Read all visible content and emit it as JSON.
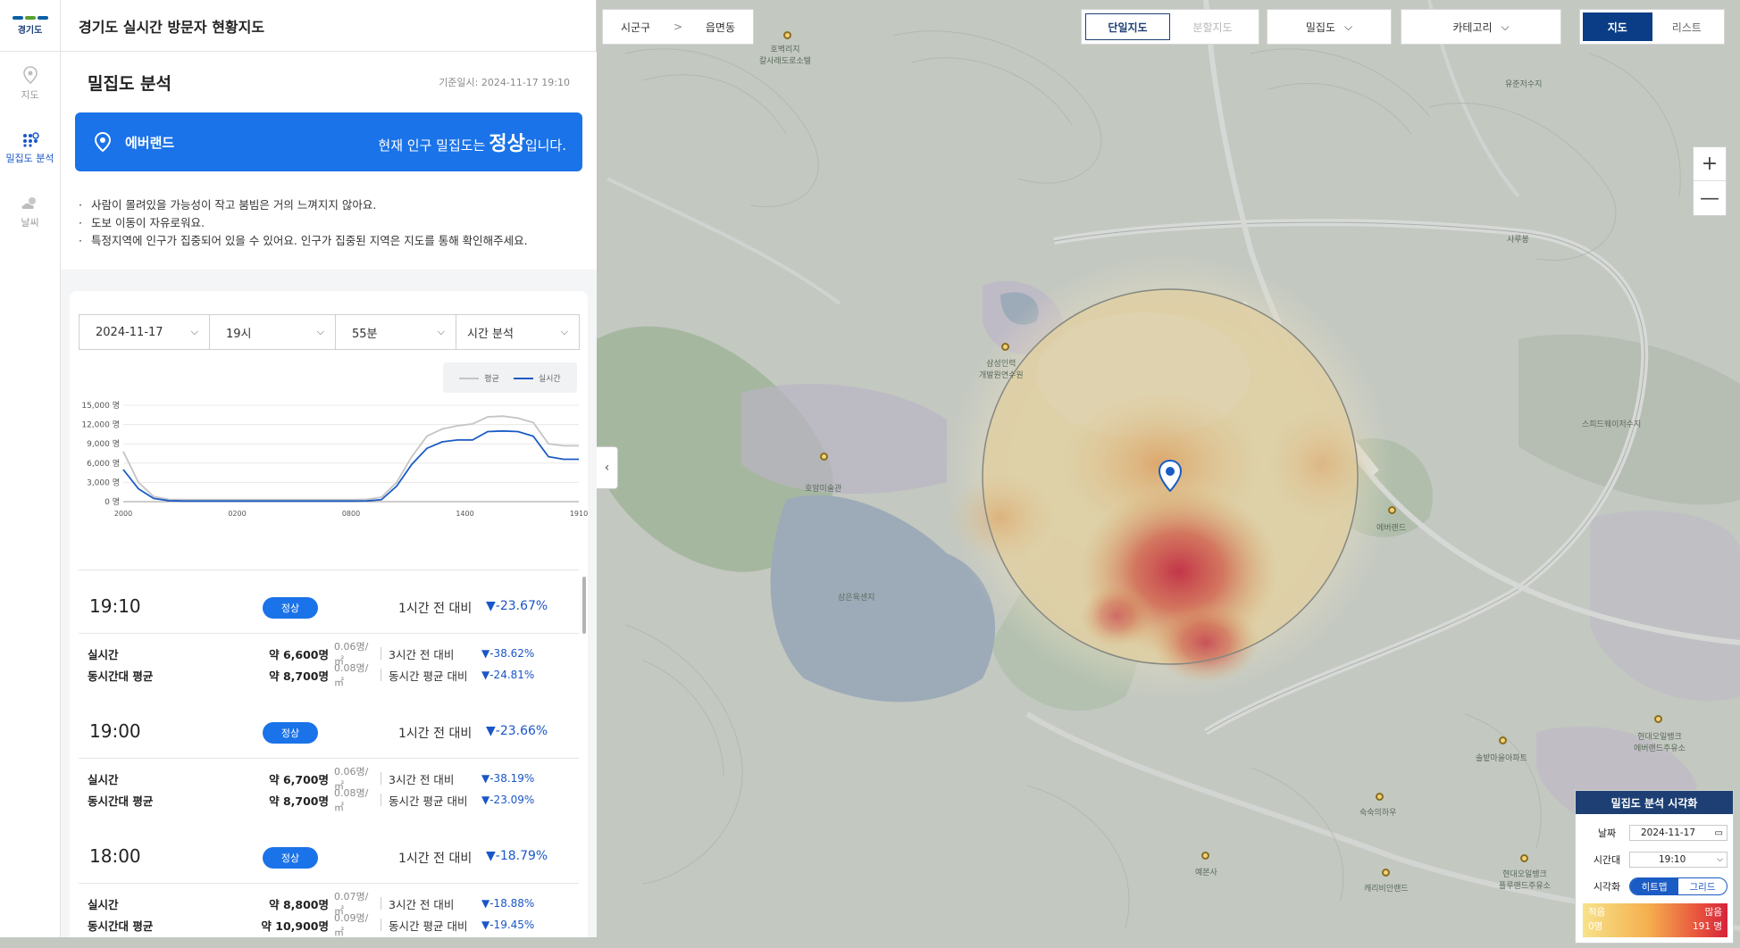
{
  "app": {
    "logo_text": "경기도",
    "title": "경기도 실시간 방문자 현황지도"
  },
  "side_nav": [
    {
      "label": "지도"
    },
    {
      "label": "밀집도 분석"
    },
    {
      "label": "날씨"
    }
  ],
  "summary": {
    "heading": "밀집도 분석",
    "timestamp": "기준일시: 2024-11-17 19:10",
    "place": "에버랜드",
    "status_prefix": "현재 인구 밀집도는",
    "status_value": "정상",
    "status_suffix": "입니다.",
    "bullets": [
      "사람이 몰려있을 가능성이 작고 붐빔은 거의 느껴지지 않아요.",
      "도보 이동이 자유로워요.",
      "특정지역에 인구가 집중되어 있을 수 있어요. 인구가 집중된 지역은 지도를 통해 확인해주세요."
    ]
  },
  "filters": {
    "date": "2024-11-17",
    "hour": "19시",
    "minute": "55분",
    "mode": "시간 분석"
  },
  "legend": {
    "avg": "평균",
    "realtime": "실시간"
  },
  "chart_data": {
    "type": "line",
    "x_ticks": [
      "2000",
      "0200",
      "0800",
      "1400",
      "1910"
    ],
    "y_ticks": [
      "15,000 명",
      "12,000 명",
      "9,000 명",
      "6,000 명",
      "3,000 명",
      "0 명"
    ],
    "ylim": [
      0,
      15000
    ],
    "colors": {
      "avg": "#c4c4c4",
      "realtime": "#1a5bc4"
    },
    "series": [
      {
        "name": "평균",
        "values": [
          7800,
          3000,
          800,
          350,
          300,
          300,
          300,
          300,
          300,
          300,
          300,
          300,
          300,
          300,
          300,
          300,
          350,
          700,
          3000,
          7000,
          10200,
          11300,
          11800,
          12100,
          13200,
          13300,
          13000,
          12300,
          9000,
          8700,
          8700
        ]
      },
      {
        "name": "실시간",
        "values": [
          5000,
          2000,
          500,
          150,
          100,
          100,
          100,
          100,
          100,
          100,
          100,
          100,
          100,
          100,
          100,
          100,
          120,
          300,
          2400,
          5800,
          8300,
          9300,
          9600,
          9600,
          10900,
          11000,
          10900,
          10200,
          7000,
          6600,
          6600
        ]
      }
    ]
  },
  "entries": [
    {
      "time": "19:10",
      "status": "정상",
      "cmp_label": "1시간 전 대비",
      "cmp_value": "▼-23.67%",
      "realtime_label": "실시간",
      "realtime_amount": "약 6,600명",
      "realtime_density": "0.06명/㎡",
      "avg_label": "동시간대 평균",
      "avg_amount": "약 8,700명",
      "avg_density": "0.08명/㎡",
      "cmp3_label": "3시간 전 대비",
      "cmp3_value": "▼-38.62%",
      "cmpavg_label": "동시간 평균 대비",
      "cmpavg_value": "▼-24.81%"
    },
    {
      "time": "19:00",
      "status": "정상",
      "cmp_label": "1시간 전 대비",
      "cmp_value": "▼-23.66%",
      "realtime_label": "실시간",
      "realtime_amount": "약 6,700명",
      "realtime_density": "0.06명/㎡",
      "avg_label": "동시간대 평균",
      "avg_amount": "약 8,700명",
      "avg_density": "0.08명/㎡",
      "cmp3_label": "3시간 전 대비",
      "cmp3_value": "▼-38.19%",
      "cmpavg_label": "동시간 평균 대비",
      "cmpavg_value": "▼-23.09%"
    },
    {
      "time": "18:00",
      "status": "정상",
      "cmp_label": "1시간 전 대비",
      "cmp_value": "▼-18.79%",
      "realtime_label": "실시간",
      "realtime_amount": "약 8,800명",
      "realtime_density": "0.07명/㎡",
      "avg_label": "동시간대 평균",
      "avg_amount": "약 10,900명",
      "avg_density": "0.09명/㎡",
      "cmp3_label": "3시간 전 대비",
      "cmp3_value": "▼-18.88%",
      "cmpavg_label": "동시간 평균 대비",
      "cmpavg_value": "▼-19.45%"
    }
  ],
  "map": {
    "breadcrumb": [
      "시군구",
      "읍면동"
    ],
    "view_toggle": [
      "단일지도",
      "분할지도"
    ],
    "density_dropdown": "밀집도",
    "category_dropdown": "카테고리",
    "mode_toggle": [
      "지도",
      "리스트"
    ],
    "zoom_in": "+",
    "zoom_out": "—",
    "collapse": "‹",
    "labels": {
      "hobaek": "호벽리지\n칼사래도로소텔",
      "yujeon": "유준저수지",
      "saaebong": "사루봉",
      "samsung": "삼성인력\n개발원연수원",
      "speedway": "스피드웨이저수지",
      "hoam": "호암미술관",
      "everland": "에버랜드",
      "samyuk": "삼은육센지",
      "hyundai1": "현대오일뱅크\n에버랜드주유소",
      "seolbat": "솔밭마을아파트",
      "sukbat": "숙숙의하우",
      "yebon": "예본사",
      "karibe": "캐리비안랜드",
      "hyundai2": "현대오일뱅크\n플루랜드주유소"
    }
  },
  "viz": {
    "title": "밀집도 분석 시각화",
    "date_label": "날짜",
    "date_value": "2024-11-17",
    "time_label": "시간대",
    "time_value": "19:10",
    "mode_label": "시각화",
    "mode_heatmap": "히트맵",
    "mode_grid": "그리드",
    "low_label": "적음",
    "low_value": "0명",
    "high_label": "많음",
    "high_value": "191 명"
  }
}
